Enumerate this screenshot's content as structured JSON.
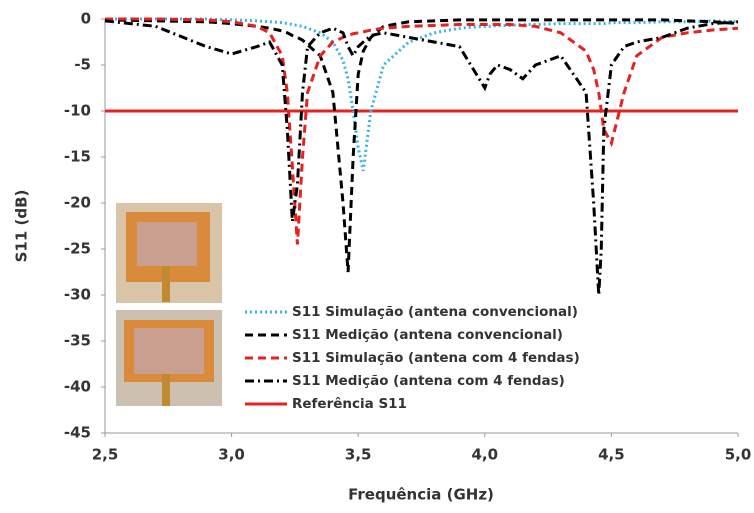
{
  "chart_data": {
    "type": "line",
    "x_label": "Frequência (GHz)",
    "y_label": "S11 (dB)",
    "xlim": [
      2.5,
      5.0
    ],
    "ylim": [
      -45,
      0
    ],
    "xticks": [
      {
        "value": 2.5,
        "label": "2,5"
      },
      {
        "value": 3.0,
        "label": "3,0"
      },
      {
        "value": 3.5,
        "label": "3,5"
      },
      {
        "value": 4.0,
        "label": "4,0"
      },
      {
        "value": 4.5,
        "label": "4,5"
      },
      {
        "value": 5.0,
        "label": "5,0"
      }
    ],
    "yticks": [
      0,
      -5,
      -10,
      -15,
      -20,
      -25,
      -30,
      -35,
      -40,
      -45
    ],
    "grid": false,
    "x": [
      2.5,
      2.7,
      2.9,
      3.0,
      3.1,
      3.15,
      3.2,
      3.22,
      3.24,
      3.26,
      3.28,
      3.3,
      3.35,
      3.4,
      3.44,
      3.46,
      3.48,
      3.5,
      3.52,
      3.55,
      3.6,
      3.7,
      3.8,
      3.9,
      4.0,
      4.02,
      4.05,
      4.1,
      4.15,
      4.2,
      4.3,
      4.4,
      4.43,
      4.45,
      4.46,
      4.47,
      4.5,
      4.55,
      4.6,
      4.7,
      4.8,
      4.9,
      5.0
    ],
    "series": [
      {
        "name": "S11 Simulação (antena convencional)",
        "color": "#33b5e5",
        "linestyle": "dotted",
        "values": [
          0,
          0,
          0,
          -0.1,
          -0.2,
          -0.3,
          -0.4,
          -0.5,
          -0.6,
          -0.7,
          -0.8,
          -1,
          -1.5,
          -2.5,
          -4.5,
          -6.5,
          -10,
          -14,
          -16.5,
          -10,
          -5,
          -2.5,
          -1.5,
          -1,
          -0.8,
          -0.8,
          -0.7,
          -0.7,
          -0.6,
          -0.6,
          -0.5,
          -0.5,
          -0.5,
          -0.5,
          -0.5,
          -0.5,
          -0.4,
          -0.4,
          -0.4,
          -0.3,
          -0.3,
          -0.2,
          -0.3
        ]
      },
      {
        "name": "S11 Medição (antena convencional)",
        "color": "#000000",
        "linestyle": "dashed",
        "values": [
          -0.1,
          -0.2,
          -0.3,
          -0.5,
          -0.8,
          -1,
          -1.3,
          -1.5,
          -1.8,
          -2,
          -2.3,
          -2.8,
          -4,
          -8,
          -20,
          -27.5,
          -15,
          -6,
          -3.5,
          -2,
          -0.8,
          -0.3,
          -0.2,
          -0.1,
          -0.1,
          -0.1,
          -0.1,
          -0.1,
          -0.1,
          -0.1,
          -0.1,
          -0.1,
          -0.1,
          -0.1,
          -0.1,
          -0.1,
          -0.1,
          -0.1,
          -0.1,
          -0.1,
          -0.2,
          -0.3,
          -0.5
        ]
      },
      {
        "name": "S11 Simulação (antena com 4 fendas)",
        "color": "#e8201e",
        "linestyle": "dashed",
        "values": [
          0,
          0,
          -0.1,
          -0.3,
          -0.8,
          -1.5,
          -4,
          -8,
          -16,
          -24.5,
          -15,
          -8,
          -4,
          -2.5,
          -2,
          -1.8,
          -1.6,
          -1.5,
          -1.4,
          -1.2,
          -1,
          -0.8,
          -0.7,
          -0.6,
          -0.6,
          -0.6,
          -0.6,
          -0.6,
          -0.7,
          -0.8,
          -1.5,
          -3.5,
          -5.5,
          -8,
          -10,
          -12,
          -13.5,
          -8,
          -4,
          -2,
          -1.5,
          -1.2,
          -1
        ]
      },
      {
        "name": "S11 Medição (antena com 4 fendas)",
        "color": "#000000",
        "linestyle": "dashdot",
        "values": [
          -0.2,
          -0.8,
          -3,
          -3.8,
          -3,
          -2.5,
          -5,
          -12,
          -22,
          -18,
          -8,
          -3,
          -1.5,
          -1,
          -1.5,
          -3,
          -4,
          -3,
          -2.5,
          -1.8,
          -1.5,
          -2,
          -2.5,
          -3,
          -7.5,
          -6,
          -5,
          -5.5,
          -6.5,
          -5,
          -4,
          -8,
          -20,
          -30,
          -25,
          -12,
          -5,
          -3,
          -2.5,
          -2,
          -1,
          -0.5,
          -0.3
        ]
      }
    ],
    "reference": {
      "name": "Referência S11",
      "value": -10,
      "color": "#e8201e"
    }
  }
}
